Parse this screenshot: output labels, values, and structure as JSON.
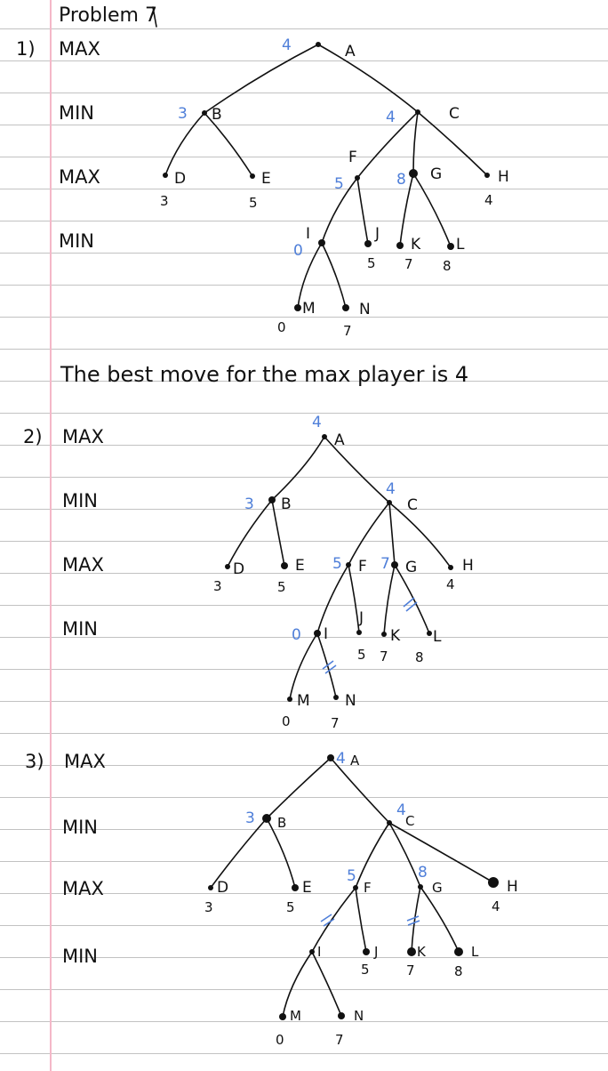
{
  "title": "Problem 7",
  "answer_text": "The best move for the max player is 4",
  "accent_color": "#4f7fd9",
  "parts": [
    {
      "number": "1)",
      "rows": [
        "MAX",
        "MIN",
        "MAX",
        "MIN"
      ],
      "nodes": {
        "A": "A",
        "B": "B",
        "C": "C",
        "D": "D",
        "E": "E",
        "F": "F",
        "G": "G",
        "H": "H",
        "I": "I",
        "J": "J",
        "K": "K",
        "L": "L",
        "M": "M",
        "N": "N"
      },
      "leaf_values": {
        "D": "3",
        "E": "5",
        "H": "4",
        "J": "5",
        "K": "7",
        "L": "8",
        "M": "0",
        "N": "7"
      },
      "backed_up_values": {
        "A": "4",
        "B": "3",
        "C": "4",
        "F": "5",
        "G": "8",
        "I": "0"
      }
    },
    {
      "number": "2)",
      "rows": [
        "MAX",
        "MIN",
        "MAX",
        "MIN"
      ],
      "nodes": {
        "A": "A",
        "B": "B",
        "C": "C",
        "D": "D",
        "E": "E",
        "F": "F",
        "G": "G",
        "H": "H",
        "I": "I",
        "J": "J",
        "K": "K",
        "L": "L",
        "M": "M",
        "N": "N"
      },
      "leaf_values": {
        "D": "3",
        "E": "5",
        "H": "4",
        "J": "5",
        "K": "7",
        "L": "8",
        "M": "0",
        "N": "7"
      },
      "backed_up_values": {
        "A": "4",
        "B": "3",
        "C": "4",
        "F": "5",
        "G": "7",
        "I": "0"
      }
    },
    {
      "number": "3)",
      "rows": [
        "MAX",
        "MIN",
        "MAX",
        "MIN"
      ],
      "nodes": {
        "A": "A",
        "B": "B",
        "C": "C",
        "D": "D",
        "E": "E",
        "F": "F",
        "G": "G",
        "H": "H",
        "I": "I",
        "J": "J",
        "K": "K",
        "L": "L",
        "M": "M",
        "N": "N"
      },
      "leaf_values": {
        "D": "3",
        "E": "5",
        "H": "4",
        "J": "5",
        "K": "7",
        "L": "8",
        "M": "0",
        "N": "7"
      },
      "backed_up_values": {
        "A": "4",
        "B": "3",
        "C": "4",
        "F": "5",
        "G": "8"
      }
    }
  ]
}
